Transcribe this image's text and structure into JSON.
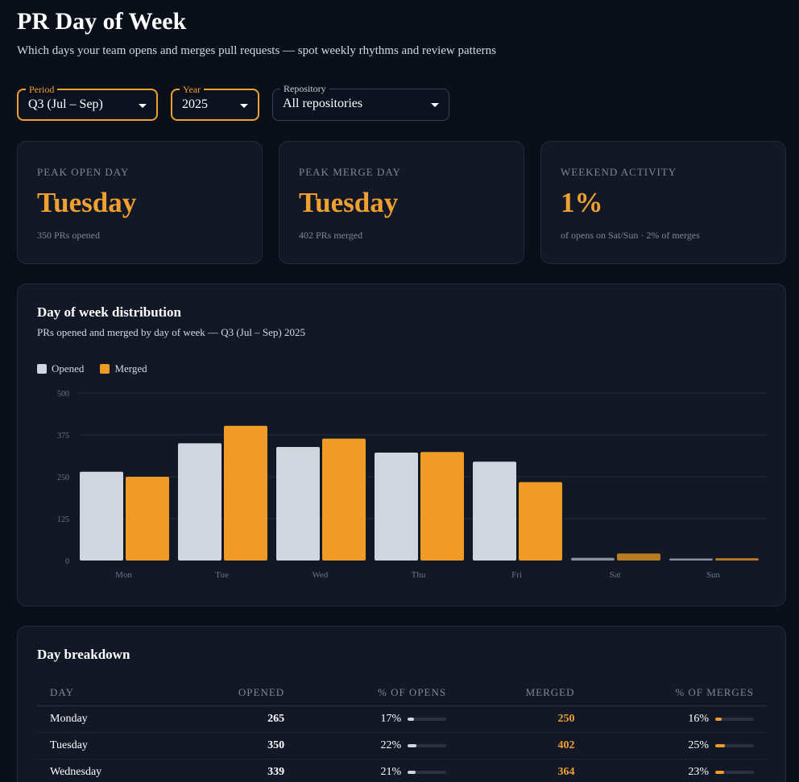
{
  "header": {
    "title": "PR Day of Week",
    "subtitle": "Which days your team opens and merges pull requests — spot weekly rhythms and review patterns"
  },
  "filters": {
    "period": {
      "label": "Period",
      "value": "Q3 (Jul – Sep)"
    },
    "year": {
      "label": "Year",
      "value": "2025"
    },
    "repository": {
      "label": "Repository",
      "value": "All repositories"
    }
  },
  "kpis": [
    {
      "label": "PEAK OPEN DAY",
      "value": "Tuesday",
      "sub": "350 PRs opened"
    },
    {
      "label": "PEAK MERGE DAY",
      "value": "Tuesday",
      "sub": "402 PRs merged"
    },
    {
      "label": "WEEKEND ACTIVITY",
      "value": "1%",
      "sub": "of opens on Sat/Sun · 2% of merges"
    }
  ],
  "chart": {
    "title": "Day of week distribution",
    "subtitle": "PRs opened and merged by day of week — Q3 (Jul – Sep) 2025",
    "legend": {
      "opened": "Opened",
      "merged": "Merged"
    }
  },
  "colors": {
    "opened": "#d1d5de",
    "merged": "#f09b26",
    "weekend_merged": "#b87a22",
    "weekend_opened": "#8a909c",
    "grid": "#232a3a",
    "tick": "#6b7385"
  },
  "chart_data": {
    "type": "bar",
    "categories": [
      "Mon",
      "Tue",
      "Wed",
      "Thu",
      "Fri",
      "Sat",
      "Sun"
    ],
    "series": [
      {
        "name": "Opened",
        "values": [
          265,
          350,
          339,
          322,
          295,
          8,
          6
        ]
      },
      {
        "name": "Merged",
        "values": [
          250,
          402,
          364,
          324,
          234,
          21,
          7
        ]
      }
    ],
    "yticks": [
      "0",
      "125",
      "250",
      "375",
      "500"
    ],
    "ylim": [
      0,
      500
    ],
    "grid": true,
    "legend_position": "top-left"
  },
  "table": {
    "title": "Day breakdown",
    "headers": {
      "day": "DAY",
      "opened": "OPENED",
      "pct_opens": "% OF OPENS",
      "merged": "MERGED",
      "pct_merges": "% OF MERGES"
    },
    "rows": [
      {
        "day": "Monday",
        "opened": "265",
        "pct_opens": "17%",
        "pct_opens_value": 17,
        "merged": "250",
        "pct_merges": "16%",
        "pct_merges_value": 16
      },
      {
        "day": "Tuesday",
        "opened": "350",
        "pct_opens": "22%",
        "pct_opens_value": 22,
        "merged": "402",
        "pct_merges": "25%",
        "pct_merges_value": 25
      },
      {
        "day": "Wednesday",
        "opened": "339",
        "pct_opens": "21%",
        "pct_opens_value": 21,
        "merged": "364",
        "pct_merges": "23%",
        "pct_merges_value": 23
      }
    ]
  }
}
